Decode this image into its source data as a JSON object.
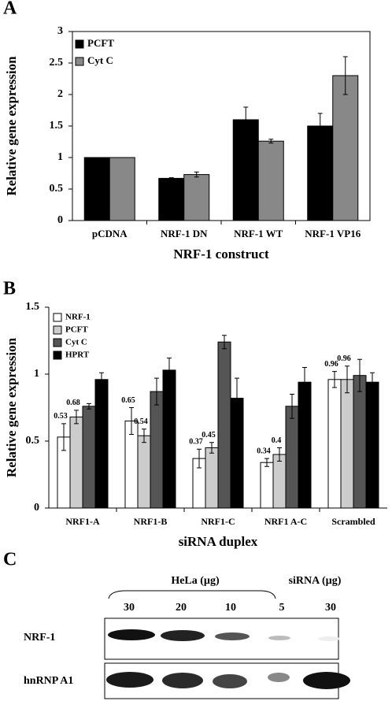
{
  "chart_data": [
    {
      "type": "bar",
      "panel_label": "A",
      "y_label": "Relative gene expression",
      "x_label": "NRF-1 construct",
      "categories": [
        "pCDNA",
        "NRF-1 DN",
        "NRF-1 WT",
        "NRF-1 VP16"
      ],
      "series": [
        {
          "name": "PCFT",
          "color": "#000000",
          "values": [
            1,
            0.67,
            1.6,
            1.5
          ],
          "errors": [
            0,
            0.01,
            0.2,
            0.2
          ]
        },
        {
          "name": "Cyt C",
          "color": "#888888",
          "values": [
            1,
            0.73,
            1.26,
            2.3
          ],
          "errors": [
            0,
            0.04,
            0.03,
            0.3
          ]
        }
      ],
      "ylim": [
        0,
        3
      ],
      "yticks": [
        0,
        0.5,
        1,
        1.5,
        2,
        2.5,
        3
      ],
      "legend": "upper left"
    },
    {
      "type": "bar",
      "panel_label": "B",
      "y_label": "Relative gene expression",
      "x_label": "siRNA duplex",
      "categories": [
        "NRF1-A",
        "NRF1-B",
        "NRF1-C",
        "NRF1 A-C",
        "Scrambled"
      ],
      "series": [
        {
          "name": "NRF-1",
          "color": "#ffffff",
          "values": [
            0.53,
            0.65,
            0.37,
            0.34,
            0.96
          ],
          "errors": [
            0.1,
            0.1,
            0.07,
            0.03,
            0.06
          ],
          "show_labels": true
        },
        {
          "name": "PCFT",
          "color": "#cccccc",
          "values": [
            0.68,
            0.54,
            0.45,
            0.4,
            0.96
          ],
          "errors": [
            0.05,
            0.05,
            0.04,
            0.05,
            0.1
          ],
          "show_labels": true
        },
        {
          "name": "Cyt C",
          "color": "#555555",
          "values": [
            0.76,
            0.87,
            1.24,
            0.76,
            0.99
          ],
          "errors": [
            0.02,
            0.1,
            0.05,
            0.09,
            0.12
          ]
        },
        {
          "name": "HPRT",
          "color": "#000000",
          "values": [
            0.96,
            1.03,
            0.82,
            0.94,
            0.94
          ],
          "errors": [
            0.05,
            0.09,
            0.15,
            0.11,
            0.07
          ]
        }
      ],
      "ylim": [
        0,
        1.5
      ],
      "yticks": [
        0,
        0.5,
        1,
        1.5
      ],
      "legend": "upper left"
    }
  ],
  "blot": {
    "panel_label": "C",
    "group_labels": [
      "HeLa (µg)",
      "siRNA (µg)"
    ],
    "lanes": [
      "30",
      "20",
      "10",
      "5",
      "30"
    ],
    "rows": [
      "NRF-1",
      "hnRNP A1"
    ]
  }
}
